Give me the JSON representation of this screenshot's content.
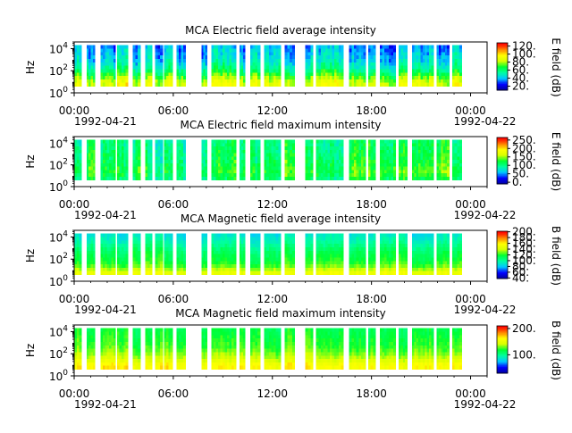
{
  "chart_data": [
    {
      "type": "heatmap",
      "title": "MCA  Electric field average intensity",
      "ylabel": "Hz",
      "yscale": "log",
      "ylim": [
        1,
        40000
      ],
      "y_ticks": [
        {
          "exp": "0",
          "value": 1
        },
        {
          "exp": "2",
          "value": 100
        },
        {
          "exp": "4",
          "value": 10000
        }
      ],
      "x_ticks": [
        "00:00",
        "06:00",
        "12:00",
        "18:00",
        "00:00"
      ],
      "x_dates": [
        "1992-04-21",
        "1992-04-22"
      ],
      "xlim": [
        "1992-04-21 00:00",
        "1992-04-22 01:00"
      ],
      "colorbar": {
        "label": "E field (dB)",
        "range": [
          10,
          128
        ],
        "ticks": [
          "20.",
          "40.",
          "60.",
          "80.",
          "100.",
          "120."
        ],
        "tick_values": [
          20,
          40,
          60,
          80,
          100,
          120
        ]
      },
      "band_profile": [
        90,
        86,
        78,
        70,
        62,
        55,
        50,
        46,
        44,
        42,
        40,
        38
      ],
      "noise_amp": 22
    },
    {
      "type": "heatmap",
      "title": "MCA  Electric field maximum intensity",
      "ylabel": "Hz",
      "yscale": "log",
      "ylim": [
        1,
        40000
      ],
      "y_ticks": [
        {
          "exp": "0",
          "value": 1
        },
        {
          "exp": "2",
          "value": 100
        },
        {
          "exp": "4",
          "value": 10000
        }
      ],
      "x_ticks": [
        "00:00",
        "06:00",
        "12:00",
        "18:00",
        "00:00"
      ],
      "x_dates": [
        "1992-04-21",
        "1992-04-22"
      ],
      "xlim": [
        "1992-04-21 00:00",
        "1992-04-22 01:00"
      ],
      "colorbar": {
        "label": "E field (dB)",
        "range": [
          -10,
          265
        ],
        "ticks": [
          "0.",
          "50.",
          "100.",
          "150.",
          "200.",
          "250."
        ],
        "tick_values": [
          0,
          50,
          100,
          150,
          200,
          250
        ]
      },
      "band_profile": [
        110,
        120,
        125,
        122,
        118,
        115,
        112,
        110,
        108,
        106,
        104,
        102
      ],
      "noise_amp": 55
    },
    {
      "type": "heatmap",
      "title": "MCA  Magnetic field average intensity",
      "ylabel": "Hz",
      "yscale": "log",
      "ylim": [
        1,
        40000
      ],
      "y_ticks": [
        {
          "exp": "0",
          "value": 1
        },
        {
          "exp": "2",
          "value": 100
        },
        {
          "exp": "4",
          "value": 10000
        }
      ],
      "x_ticks": [
        "00:00",
        "06:00",
        "12:00",
        "18:00",
        "00:00"
      ],
      "x_dates": [
        "1992-04-21",
        "1992-04-22"
      ],
      "xlim": [
        "1992-04-21 00:00",
        "1992-04-22 01:00"
      ],
      "colorbar": {
        "label": "B field (dB)",
        "range": [
          38,
          202
        ],
        "ticks": [
          "40.",
          "60.",
          "80.",
          "100.",
          "120.",
          "140.",
          "160.",
          "180.",
          "200."
        ],
        "tick_values": [
          40,
          60,
          80,
          100,
          120,
          140,
          160,
          180,
          200
        ]
      },
      "band_profile": [
        150,
        138,
        128,
        122,
        118,
        115,
        112,
        108,
        103,
        98,
        94,
        90
      ],
      "noise_amp": 14
    },
    {
      "type": "heatmap",
      "title": "MCA  Magnetic field maximum intensity",
      "ylabel": "Hz",
      "yscale": "log",
      "ylim": [
        1,
        40000
      ],
      "y_ticks": [
        {
          "exp": "0",
          "value": 1
        },
        {
          "exp": "2",
          "value": 100
        },
        {
          "exp": "4",
          "value": 10000
        }
      ],
      "x_ticks": [
        "00:00",
        "06:00",
        "12:00",
        "18:00",
        "00:00"
      ],
      "x_dates": [
        "1992-04-21",
        "1992-04-22"
      ],
      "xlim": [
        "1992-04-21 00:00",
        "1992-04-22 01:00"
      ],
      "colorbar": {
        "label": "B field (dB)",
        "range": [
          30,
          210
        ],
        "ticks": [
          "100.",
          "200."
        ],
        "tick_values": [
          100,
          200
        ]
      },
      "band_profile": [
        165,
        160,
        150,
        142,
        136,
        130,
        126,
        124,
        122,
        120,
        118,
        116
      ],
      "noise_amp": 16
    }
  ],
  "data_segments_hours": [
    [
      0.0,
      0.45
    ],
    [
      0.75,
      1.25
    ],
    [
      1.6,
      2.5
    ],
    [
      2.6,
      3.25
    ],
    [
      3.55,
      4.0
    ],
    [
      4.3,
      4.7
    ],
    [
      4.9,
      5.35
    ],
    [
      5.45,
      5.95
    ],
    [
      6.2,
      6.75
    ],
    [
      7.7,
      8.05
    ],
    [
      8.3,
      9.8
    ],
    [
      10.0,
      10.35
    ],
    [
      10.65,
      11.25
    ],
    [
      11.5,
      12.5
    ],
    [
      12.75,
      13.35
    ],
    [
      14.0,
      14.45
    ],
    [
      14.65,
      16.3
    ],
    [
      16.65,
      17.65
    ],
    [
      17.8,
      18.25
    ],
    [
      18.5,
      19.45
    ],
    [
      19.65,
      20.15
    ],
    [
      20.45,
      21.75
    ],
    [
      21.95,
      22.7
    ],
    [
      22.9,
      23.45
    ]
  ],
  "colors": {
    "colormap": [
      "#0000a0",
      "#0000ff",
      "#00c8ff",
      "#00ffa0",
      "#00ff30",
      "#d8ff00",
      "#ffff00",
      "#ff8000",
      "#ff0000"
    ]
  }
}
